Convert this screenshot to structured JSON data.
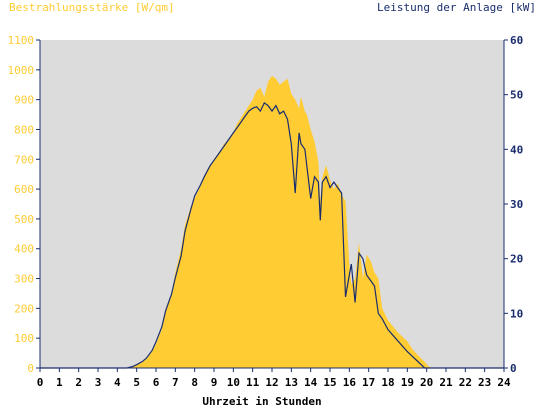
{
  "chart_data": {
    "type": "area",
    "title_left": "Bestrahlungsstärke [W/qm]",
    "title_right": "Leistung der Anlage [kW]",
    "xlabel": "Uhrzeit in Stunden",
    "xlim": [
      0,
      24
    ],
    "x_ticks": [
      "0",
      "1",
      "2",
      "3",
      "4",
      "5",
      "6",
      "7",
      "8",
      "9",
      "10",
      "11",
      "12",
      "13",
      "14",
      "15",
      "16",
      "17",
      "18",
      "19",
      "20",
      "21",
      "22",
      "23",
      "24"
    ],
    "ylim_left": [
      0,
      1100
    ],
    "y_ticks_left": [
      "0",
      "100",
      "200",
      "300",
      "400",
      "500",
      "600",
      "700",
      "800",
      "900",
      "1000",
      "1100"
    ],
    "ylim_right": [
      0,
      60
    ],
    "y_ticks_right": [
      "0",
      "10",
      "20",
      "30",
      "40",
      "50",
      "60"
    ],
    "colors": {
      "irradiance": "#ffcc33",
      "power": "#1a2d6e",
      "plot_bg": "#dcdcdc"
    },
    "series": [
      {
        "name": "Bestrahlungsstärke [W/qm]",
        "axis": "left",
        "x": [
          0,
          4.5,
          4.8,
          5.0,
          5.3,
          5.5,
          5.8,
          6.0,
          6.3,
          6.5,
          6.8,
          7.0,
          7.3,
          7.5,
          7.8,
          8.0,
          8.3,
          8.5,
          8.8,
          9.0,
          9.3,
          9.5,
          9.8,
          10.0,
          10.2,
          10.4,
          10.6,
          10.8,
          11.0,
          11.2,
          11.4,
          11.6,
          11.8,
          12.0,
          12.2,
          12.4,
          12.6,
          12.8,
          13.0,
          13.2,
          13.4,
          13.5,
          13.7,
          13.8,
          14.0,
          14.2,
          14.4,
          14.5,
          14.6,
          14.8,
          15.0,
          15.2,
          15.4,
          15.6,
          15.8,
          16.0,
          16.1,
          16.3,
          16.5,
          16.7,
          16.9,
          17.1,
          17.3,
          17.5,
          17.7,
          18.0,
          18.5,
          19.0,
          19.3,
          19.6,
          19.9,
          20.1,
          20.3,
          24
        ],
        "values": [
          0,
          0,
          5,
          10,
          20,
          30,
          55,
          80,
          130,
          190,
          250,
          320,
          400,
          480,
          540,
          570,
          610,
          640,
          680,
          700,
          720,
          750,
          770,
          790,
          820,
          840,
          860,
          880,
          900,
          930,
          940,
          910,
          960,
          980,
          970,
          950,
          960,
          970,
          920,
          900,
          870,
          910,
          860,
          850,
          800,
          760,
          690,
          560,
          640,
          680,
          630,
          600,
          620,
          580,
          560,
          350,
          280,
          300,
          420,
          300,
          380,
          360,
          320,
          300,
          200,
          160,
          120,
          90,
          60,
          40,
          20,
          5,
          0,
          0
        ]
      },
      {
        "name": "Leistung der Anlage [kW]",
        "axis": "right",
        "x": [
          0,
          4.5,
          4.8,
          5.0,
          5.3,
          5.5,
          5.8,
          6.0,
          6.3,
          6.5,
          6.8,
          7.0,
          7.3,
          7.5,
          7.8,
          8.0,
          8.3,
          8.5,
          8.8,
          9.0,
          9.3,
          9.5,
          9.8,
          10.0,
          10.2,
          10.4,
          10.6,
          10.8,
          11.0,
          11.2,
          11.4,
          11.6,
          11.8,
          12.0,
          12.2,
          12.4,
          12.6,
          12.8,
          13.0,
          13.2,
          13.4,
          13.5,
          13.7,
          13.8,
          14.0,
          14.2,
          14.4,
          14.5,
          14.6,
          14.8,
          15.0,
          15.2,
          15.4,
          15.6,
          15.8,
          16.0,
          16.1,
          16.3,
          16.5,
          16.7,
          16.9,
          17.1,
          17.3,
          17.5,
          17.7,
          18.0,
          18.5,
          19.0,
          19.3,
          19.6,
          19.9,
          20.1,
          20.3,
          24
        ],
        "values": [
          0,
          0,
          0.3,
          0.6,
          1.2,
          1.8,
          3.2,
          4.8,
          7.5,
          10.5,
          13.5,
          16.5,
          20.5,
          25,
          29,
          31.5,
          33.5,
          35,
          37,
          38,
          39.5,
          40.5,
          42,
          43,
          44,
          45,
          46,
          47,
          47.5,
          47.8,
          47,
          48.5,
          48,
          47,
          48,
          46.5,
          47,
          45.5,
          41,
          32,
          43,
          41,
          40,
          37,
          31,
          35,
          34,
          27,
          34,
          35,
          33,
          34,
          33,
          32,
          13,
          17,
          19,
          12,
          21,
          20,
          17,
          16,
          15,
          10,
          9,
          7,
          5,
          3,
          2,
          1,
          0,
          0,
          0,
          0
        ]
      }
    ]
  }
}
